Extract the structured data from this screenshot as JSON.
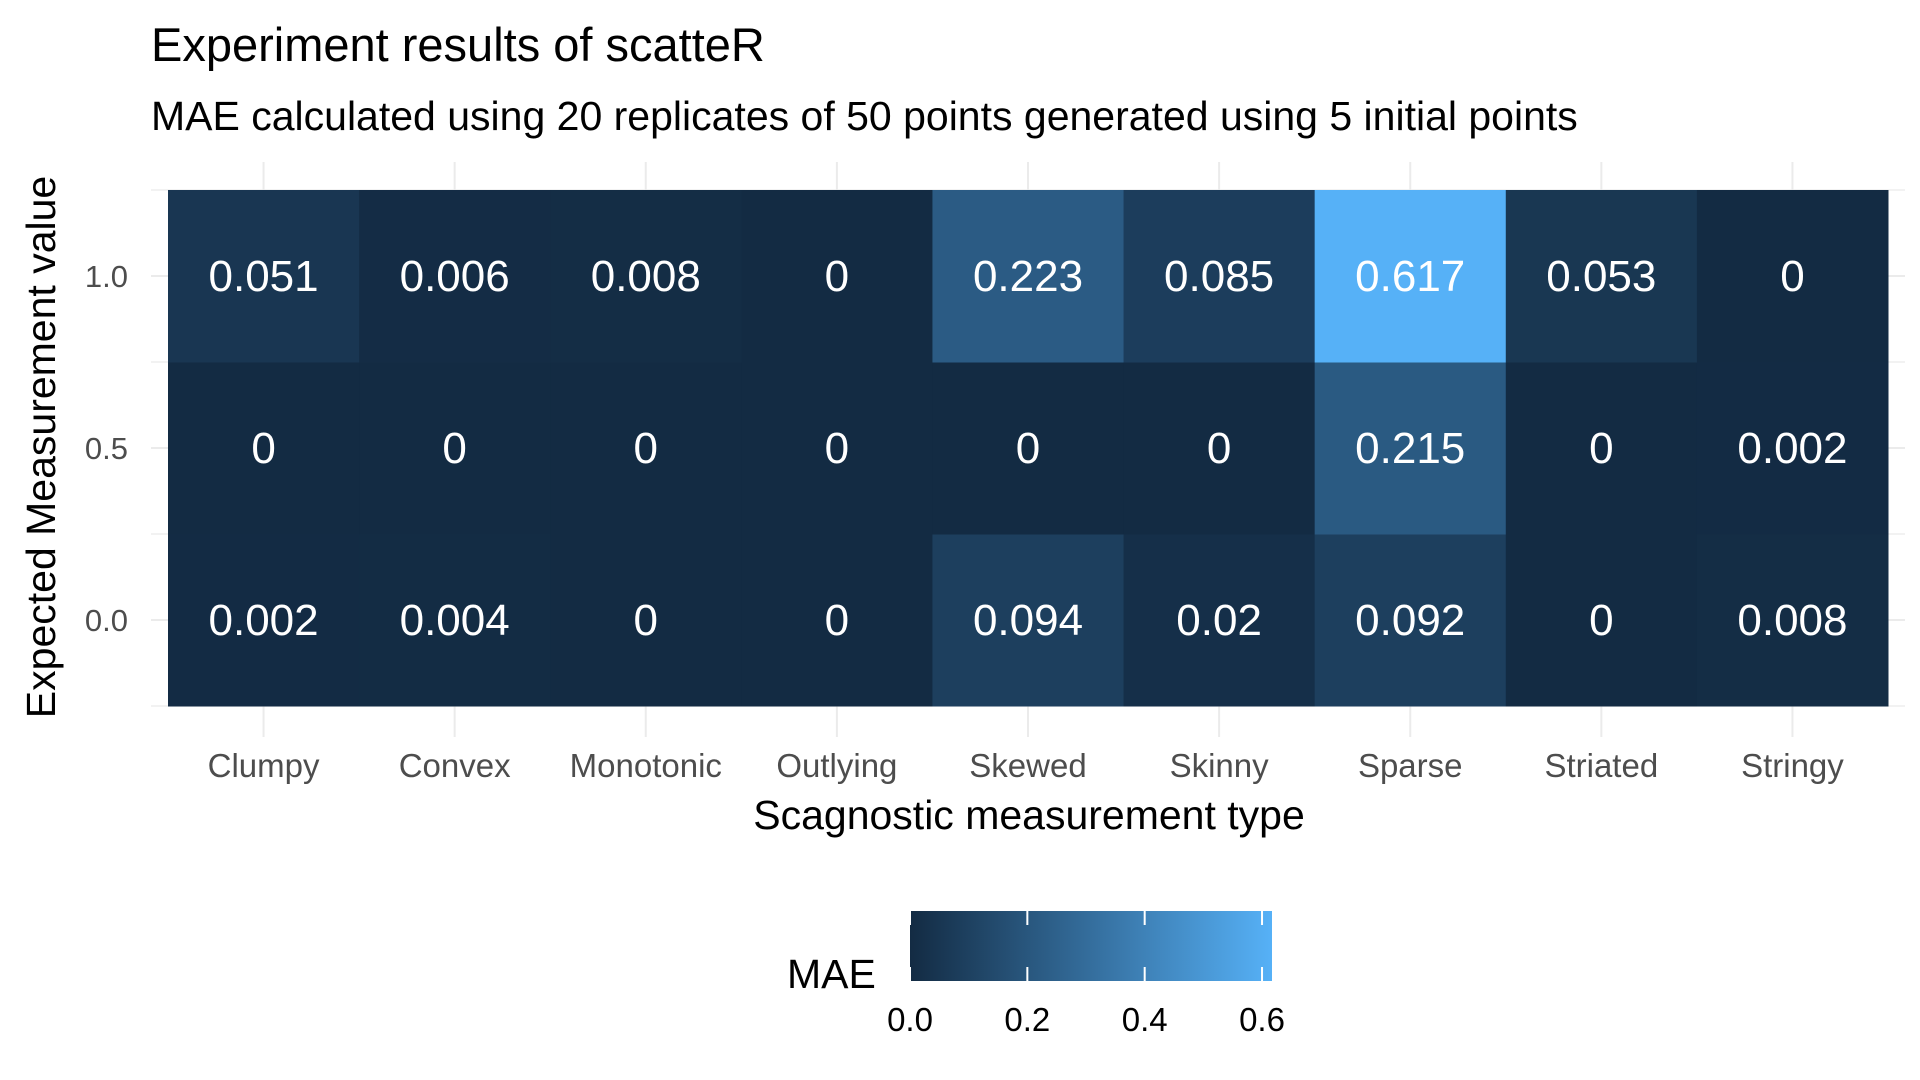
{
  "chart_data": {
    "type": "heatmap",
    "title": "Experiment results of scatteR",
    "subtitle": "MAE calculated using 20 replicates of 50 points generated using 5 initial points",
    "xlabel": "Scagnostic measurement type",
    "ylabel": "Expected Measurement value",
    "x_categories": [
      "Clumpy",
      "Convex",
      "Monotonic",
      "Outlying",
      "Skewed",
      "Skinny",
      "Sparse",
      "Striated",
      "Stringy"
    ],
    "y_categories": [
      "0.0",
      "0.5",
      "1.0"
    ],
    "values": [
      [
        0.002,
        0.004,
        0,
        0,
        0.094,
        0.02,
        0.092,
        0,
        0.008
      ],
      [
        0,
        0,
        0,
        0,
        0,
        0,
        0.215,
        0,
        0.002
      ],
      [
        0.051,
        0.006,
        0.008,
        0,
        0.223,
        0.085,
        0.617,
        0.053,
        0
      ]
    ],
    "labels": [
      [
        "0.002",
        "0.004",
        "0",
        "0",
        "0.094",
        "0.02",
        "0.092",
        "0",
        "0.008"
      ],
      [
        "0",
        "0",
        "0",
        "0",
        "0",
        "0",
        "0.215",
        "0",
        "0.002"
      ],
      [
        "0.051",
        "0.006",
        "0.008",
        "0",
        "0.223",
        "0.085",
        "0.617",
        "0.053",
        "0"
      ]
    ],
    "legend": {
      "title": "MAE",
      "position": "bottom",
      "ticks": [
        "0.0",
        "0.2",
        "0.4",
        "0.6"
      ],
      "tick_values": [
        0,
        0.2,
        0.4,
        0.6
      ],
      "range": [
        0,
        0.617
      ]
    },
    "colors": {
      "low": "#132B43",
      "high": "#56B1F7",
      "grid": "#EBEBEB",
      "tick_text": "#4D4D4D",
      "cell_text": "#FFFFFF"
    },
    "grid": true
  }
}
